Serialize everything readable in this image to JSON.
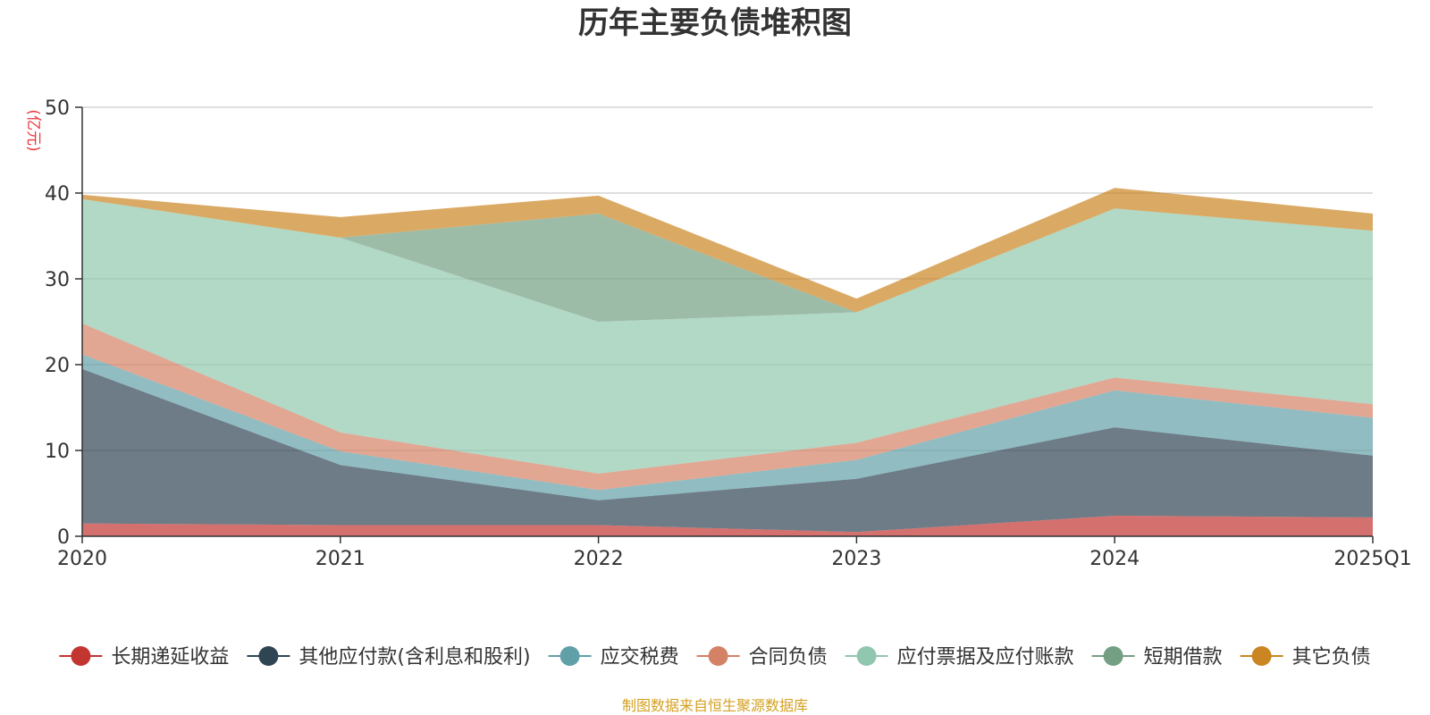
{
  "chart_data": {
    "type": "area",
    "stacked": true,
    "title": "历年主要负债堆积图",
    "ylabel": "(亿元)",
    "xlabel": "",
    "categories": [
      "2020",
      "2021",
      "2022",
      "2023",
      "2024",
      "2025Q1"
    ],
    "ylim": [
      0,
      50
    ],
    "yticks": [
      0,
      10,
      20,
      30,
      40,
      50
    ],
    "grid": true,
    "legend_position": "bottom",
    "series": [
      {
        "name": "长期递延收益",
        "color": "#c23531",
        "values": [
          1.5,
          1.3,
          1.3,
          0.5,
          2.4,
          2.2
        ]
      },
      {
        "name": "其他应付款(含利息和股利)",
        "color": "#2f4554",
        "values": [
          18.0,
          7.0,
          2.9,
          6.2,
          10.3,
          7.2
        ]
      },
      {
        "name": "应交税费",
        "color": "#61a0a8",
        "values": [
          1.7,
          1.6,
          1.2,
          2.2,
          4.3,
          4.4
        ]
      },
      {
        "name": "合同负债",
        "color": "#d48265",
        "values": [
          3.6,
          2.2,
          1.9,
          2.0,
          1.5,
          1.6
        ]
      },
      {
        "name": "应付票据及应付账款",
        "color": "#91c7ae",
        "values": [
          14.5,
          22.7,
          17.7,
          15.2,
          19.7,
          20.2
        ]
      },
      {
        "name": "短期借款",
        "color": "#749f83",
        "values": [
          0.0,
          0.0,
          12.6,
          0.0,
          0.0,
          0.0
        ]
      },
      {
        "name": "其它负债",
        "color": "#ca8622",
        "values": [
          0.5,
          2.4,
          2.1,
          1.6,
          2.4,
          2.0
        ]
      }
    ]
  },
  "source_note": "制图数据来自恒生聚源数据库"
}
